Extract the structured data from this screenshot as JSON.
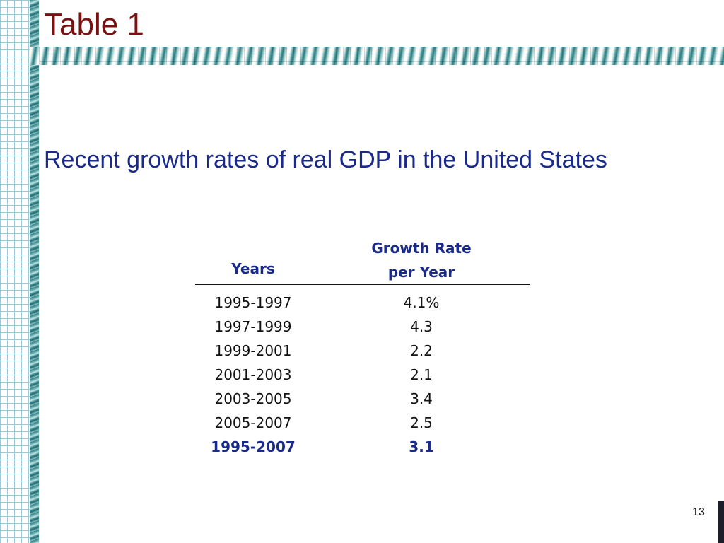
{
  "slide": {
    "title": "Table 1",
    "subtitle": "Recent growth rates of real GDP in the United States",
    "page_number": "13"
  },
  "table": {
    "headers": {
      "years": "Years",
      "rate_line1": "Growth Rate",
      "rate_line2": "per Year"
    },
    "rows": [
      {
        "years": "1995-1997",
        "rate": "4.1%"
      },
      {
        "years": "1997-1999",
        "rate": "4.3"
      },
      {
        "years": "1999-2001",
        "rate": "2.2"
      },
      {
        "years": "2001-2003",
        "rate": "2.1"
      },
      {
        "years": "2003-2005",
        "rate": "3.4"
      },
      {
        "years": "2005-2007",
        "rate": "2.5"
      },
      {
        "years": "1995-2007",
        "rate": "3.1",
        "total": true
      }
    ]
  },
  "colors": {
    "title": "#7a1010",
    "subtitle": "#1a2a8a",
    "header": "#1a2a8a",
    "total_row": "#1a2a8a"
  }
}
